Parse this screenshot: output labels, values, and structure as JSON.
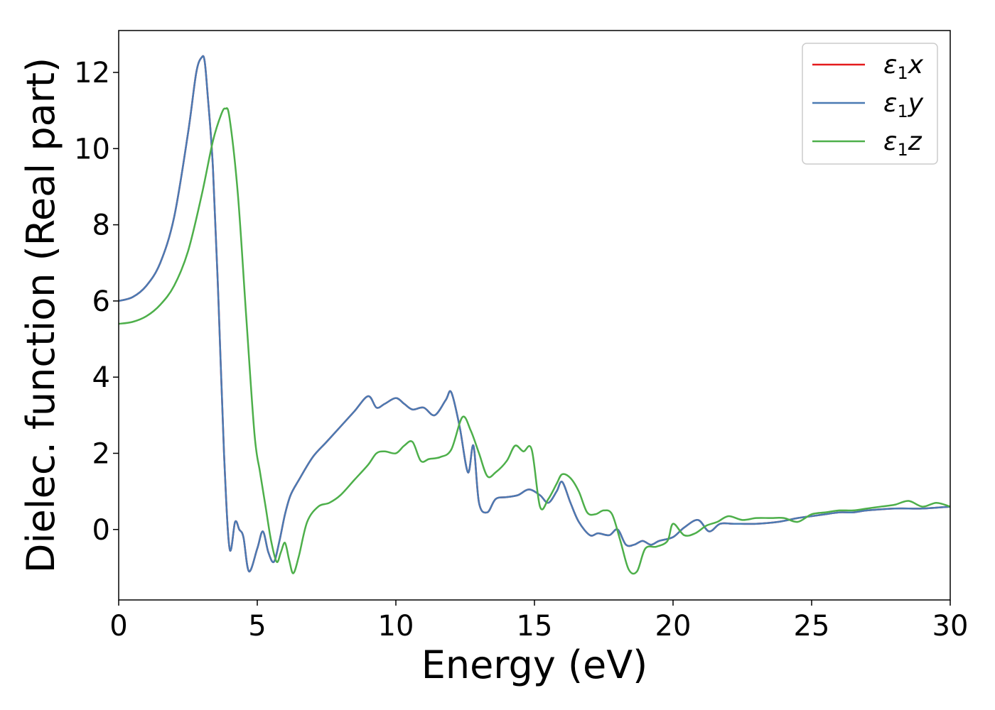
{
  "chart_data": {
    "type": "line",
    "xlabel": "Energy (eV)",
    "ylabel": "Dielec. function (Real part)",
    "xlim": [
      0,
      30
    ],
    "ylim": [
      -1.85,
      13.1
    ],
    "xticks": [
      0,
      5,
      10,
      15,
      20,
      25,
      30
    ],
    "xtick_labels": [
      "0",
      "5",
      "10",
      "15",
      "20",
      "25",
      "30"
    ],
    "yticks": [
      0,
      2,
      4,
      6,
      8,
      10,
      12
    ],
    "ytick_labels": [
      "0",
      "2",
      "4",
      "6",
      "8",
      "10",
      "12"
    ],
    "grid": false,
    "legend_position": "top-right",
    "series": [
      {
        "name": "ε1x",
        "legend_base": "ε",
        "legend_sub": "1",
        "legend_suffix": "x",
        "color": "#e41a1c",
        "x": [
          0,
          0.5,
          1,
          1.5,
          2,
          2.5,
          2.8,
          3.0,
          3.1,
          3.2,
          3.4,
          3.6,
          3.8,
          4.0,
          4.2,
          4.35,
          4.5,
          4.7,
          5.0,
          5.2,
          5.4,
          5.6,
          5.8,
          6.0,
          6.2,
          6.5,
          7.0,
          7.5,
          8.0,
          8.5,
          9.0,
          9.3,
          9.6,
          10.0,
          10.3,
          10.6,
          11.0,
          11.4,
          11.8,
          12.0,
          12.3,
          12.6,
          12.8,
          13.0,
          13.3,
          13.6,
          14.0,
          14.4,
          14.8,
          15.2,
          15.5,
          15.8,
          16.0,
          16.3,
          16.6,
          17.0,
          17.3,
          17.7,
          18.0,
          18.3,
          18.6,
          18.9,
          19.2,
          19.5,
          20.0,
          20.4,
          20.9,
          21.3,
          21.7,
          22.2,
          23.0,
          23.8,
          24.5,
          25.0,
          25.5,
          26.0,
          26.5,
          27.0,
          28.0,
          29.0,
          30.0
        ],
        "values": [
          6.0,
          6.1,
          6.4,
          7.0,
          8.2,
          10.4,
          12.0,
          12.4,
          12.3,
          11.5,
          9.5,
          6.0,
          2.0,
          -0.5,
          0.2,
          0.0,
          -0.2,
          -1.1,
          -0.5,
          -0.05,
          -0.6,
          -0.85,
          -0.3,
          0.4,
          0.9,
          1.3,
          1.9,
          2.3,
          2.7,
          3.1,
          3.5,
          3.2,
          3.3,
          3.45,
          3.3,
          3.15,
          3.2,
          3.0,
          3.4,
          3.6,
          2.7,
          1.5,
          2.2,
          0.7,
          0.45,
          0.8,
          0.85,
          0.9,
          1.05,
          0.9,
          0.7,
          1.0,
          1.25,
          0.7,
          0.2,
          -0.15,
          -0.1,
          -0.15,
          0.0,
          -0.4,
          -0.4,
          -0.3,
          -0.4,
          -0.3,
          -0.2,
          0.05,
          0.25,
          -0.05,
          0.15,
          0.15,
          0.15,
          0.2,
          0.3,
          0.35,
          0.4,
          0.45,
          0.45,
          0.5,
          0.55,
          0.55,
          0.6
        ]
      },
      {
        "name": "ε1y",
        "legend_base": "ε",
        "legend_sub": "1",
        "legend_suffix": "y",
        "color": "#4a7ab3",
        "x": [
          0,
          0.5,
          1,
          1.5,
          2,
          2.5,
          2.8,
          3.0,
          3.1,
          3.2,
          3.4,
          3.6,
          3.8,
          4.0,
          4.2,
          4.35,
          4.5,
          4.7,
          5.0,
          5.2,
          5.4,
          5.6,
          5.8,
          6.0,
          6.2,
          6.5,
          7.0,
          7.5,
          8.0,
          8.5,
          9.0,
          9.3,
          9.6,
          10.0,
          10.3,
          10.6,
          11.0,
          11.4,
          11.8,
          12.0,
          12.3,
          12.6,
          12.8,
          13.0,
          13.3,
          13.6,
          14.0,
          14.4,
          14.8,
          15.2,
          15.5,
          15.8,
          16.0,
          16.3,
          16.6,
          17.0,
          17.3,
          17.7,
          18.0,
          18.3,
          18.6,
          18.9,
          19.2,
          19.5,
          20.0,
          20.4,
          20.9,
          21.3,
          21.7,
          22.2,
          23.0,
          23.8,
          24.5,
          25.0,
          25.5,
          26.0,
          26.5,
          27.0,
          28.0,
          29.0,
          30.0
        ],
        "values": [
          6.0,
          6.1,
          6.4,
          7.0,
          8.2,
          10.4,
          12.0,
          12.4,
          12.3,
          11.5,
          9.5,
          6.0,
          2.0,
          -0.5,
          0.2,
          0.0,
          -0.2,
          -1.1,
          -0.5,
          -0.05,
          -0.6,
          -0.85,
          -0.3,
          0.4,
          0.9,
          1.3,
          1.9,
          2.3,
          2.7,
          3.1,
          3.5,
          3.2,
          3.3,
          3.45,
          3.3,
          3.15,
          3.2,
          3.0,
          3.4,
          3.6,
          2.7,
          1.5,
          2.2,
          0.7,
          0.45,
          0.8,
          0.85,
          0.9,
          1.05,
          0.9,
          0.7,
          1.0,
          1.25,
          0.7,
          0.2,
          -0.15,
          -0.1,
          -0.15,
          0.0,
          -0.4,
          -0.4,
          -0.3,
          -0.4,
          -0.3,
          -0.2,
          0.05,
          0.25,
          -0.05,
          0.15,
          0.15,
          0.15,
          0.2,
          0.3,
          0.35,
          0.4,
          0.45,
          0.45,
          0.5,
          0.55,
          0.55,
          0.6
        ]
      },
      {
        "name": "ε1z",
        "legend_base": "ε",
        "legend_sub": "1",
        "legend_suffix": "z",
        "color": "#4daf4a",
        "x": [
          0,
          0.5,
          1,
          1.5,
          2,
          2.5,
          3.0,
          3.4,
          3.7,
          3.85,
          4.0,
          4.3,
          4.6,
          4.9,
          5.1,
          5.3,
          5.5,
          5.7,
          5.85,
          6.0,
          6.15,
          6.3,
          6.5,
          6.8,
          7.2,
          7.6,
          8.0,
          8.5,
          9.0,
          9.3,
          9.6,
          10.0,
          10.3,
          10.6,
          10.9,
          11.2,
          11.6,
          12.0,
          12.4,
          12.7,
          13.0,
          13.3,
          13.6,
          14.0,
          14.3,
          14.6,
          14.9,
          15.2,
          15.5,
          15.8,
          16.0,
          16.3,
          16.6,
          16.9,
          17.2,
          17.5,
          17.8,
          18.1,
          18.4,
          18.7,
          19.0,
          19.4,
          19.8,
          20.0,
          20.4,
          20.8,
          21.2,
          21.6,
          22.0,
          22.5,
          23.0,
          23.5,
          24.0,
          24.5,
          25.0,
          25.5,
          26.0,
          26.5,
          27.0,
          27.5,
          28.0,
          28.5,
          29.0,
          29.5,
          30.0
        ],
        "values": [
          5.4,
          5.45,
          5.6,
          5.9,
          6.4,
          7.3,
          8.8,
          10.2,
          10.9,
          11.05,
          10.8,
          8.8,
          5.6,
          2.5,
          1.5,
          0.6,
          -0.3,
          -0.85,
          -0.6,
          -0.35,
          -0.8,
          -1.15,
          -0.7,
          0.2,
          0.6,
          0.7,
          0.9,
          1.3,
          1.7,
          2.0,
          2.05,
          2.0,
          2.2,
          2.3,
          1.8,
          1.85,
          1.9,
          2.1,
          2.95,
          2.6,
          2.0,
          1.4,
          1.5,
          1.8,
          2.2,
          2.05,
          2.1,
          0.6,
          0.8,
          1.2,
          1.45,
          1.35,
          1.0,
          0.45,
          0.4,
          0.5,
          0.4,
          -0.3,
          -1.05,
          -1.1,
          -0.5,
          -0.45,
          -0.3,
          0.15,
          -0.15,
          -0.1,
          0.1,
          0.2,
          0.35,
          0.25,
          0.3,
          0.3,
          0.3,
          0.2,
          0.4,
          0.45,
          0.5,
          0.5,
          0.55,
          0.6,
          0.65,
          0.75,
          0.6,
          0.7,
          0.6
        ]
      }
    ]
  }
}
